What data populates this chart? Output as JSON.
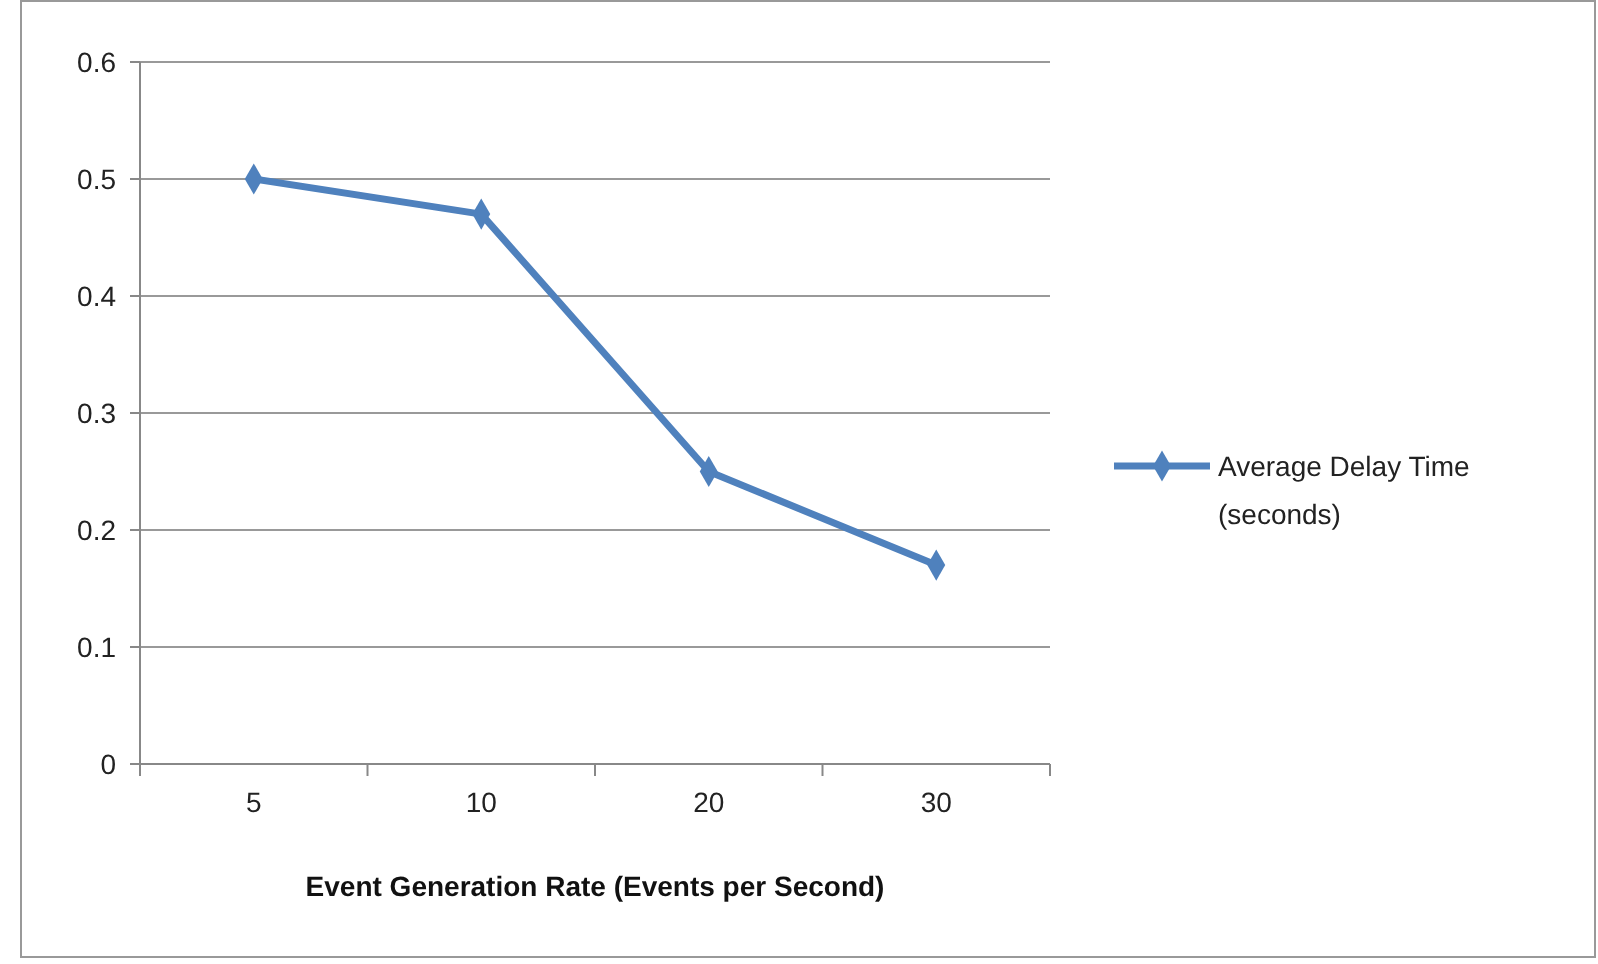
{
  "chart_data": {
    "type": "line",
    "xlabel": "Event Generation Rate (Events per Second)",
    "categories": [
      "5",
      "10",
      "20",
      "30"
    ],
    "series": [
      {
        "name": "Average Delay Time (seconds)",
        "color": "#4f81bd",
        "values": [
          0.5,
          0.47,
          0.25,
          0.17
        ]
      }
    ],
    "ylim": [
      0,
      0.6
    ],
    "yticks": [
      0,
      0.1,
      0.2,
      0.3,
      0.4,
      0.5,
      0.6
    ],
    "grid": "y",
    "legend": "right",
    "marker": "diamond",
    "line_style": "solid"
  }
}
